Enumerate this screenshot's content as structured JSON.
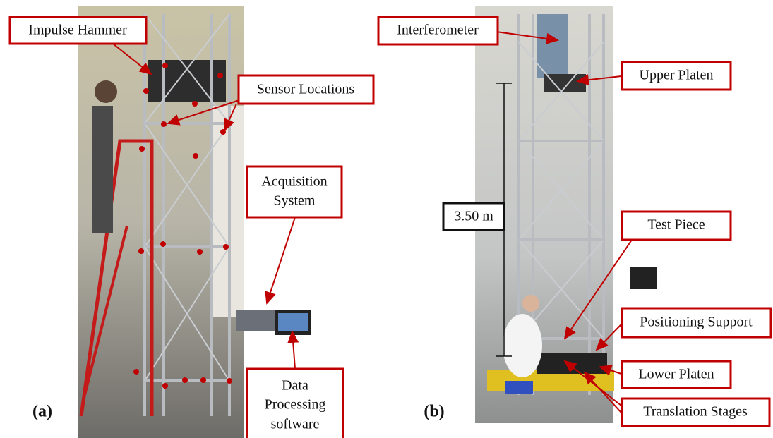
{
  "panels": [
    {
      "label": "(a)",
      "annotations": [
        {
          "text": "Impulse Hammer"
        },
        {
          "text": "Sensor Locations"
        },
        {
          "lines": [
            "Acquisition",
            "System"
          ]
        },
        {
          "lines": [
            "Data",
            "Processing",
            "software"
          ]
        }
      ]
    },
    {
      "label": "(b)",
      "dimension": "3.50 m",
      "annotations": [
        {
          "text": "Interferometer"
        },
        {
          "text": "Upper Platen"
        },
        {
          "text": "Test Piece"
        },
        {
          "text": "Positioning Support"
        },
        {
          "text": "Lower Platen"
        },
        {
          "text": "Translation Stages"
        }
      ]
    }
  ]
}
